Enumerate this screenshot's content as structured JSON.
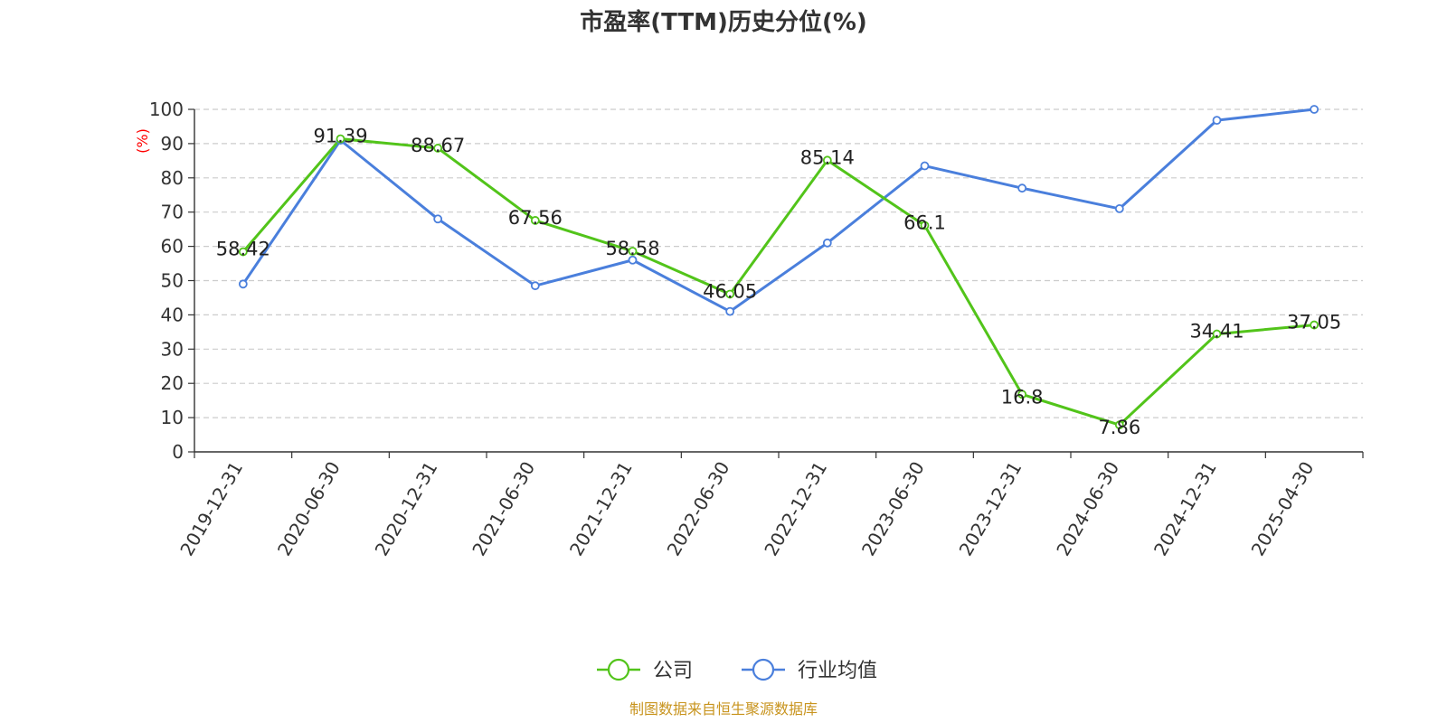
{
  "chart_data": {
    "type": "line",
    "title": "市盈率(TTM)历史分位(%)",
    "ylabel": "(%)",
    "ylim": [
      0,
      100
    ],
    "yticks": [
      0,
      10,
      20,
      30,
      40,
      50,
      60,
      70,
      80,
      90,
      100
    ],
    "grid": true,
    "legend_position": "bottom",
    "categories": [
      "2019-12-31",
      "2020-06-30",
      "2020-12-31",
      "2021-06-30",
      "2021-12-31",
      "2022-06-30",
      "2022-12-31",
      "2023-06-30",
      "2023-12-31",
      "2024-06-30",
      "2024-12-31",
      "2025-04-30"
    ],
    "series": [
      {
        "name": "公司",
        "color": "#52c41a",
        "values": [
          58.42,
          91.39,
          88.67,
          67.56,
          58.58,
          46.05,
          85.14,
          66.1,
          16.8,
          7.86,
          34.41,
          37.05
        ],
        "labels": [
          "58.42",
          "91.39",
          "88.67",
          "67.56",
          "58.58",
          "46.05",
          "85.14",
          "66.1",
          "16.8",
          "7.86",
          "34.41",
          "37.05"
        ]
      },
      {
        "name": "行业均值",
        "color": "#4a7fdc",
        "values": [
          49,
          91,
          68,
          48.5,
          56,
          41,
          61,
          83.5,
          77,
          71,
          96.8,
          100
        ]
      }
    ]
  },
  "footer": {
    "source": "制图数据来自恒生聚源数据库",
    "source_color": "#c8941e"
  },
  "ylabel_color": "#ff0000"
}
